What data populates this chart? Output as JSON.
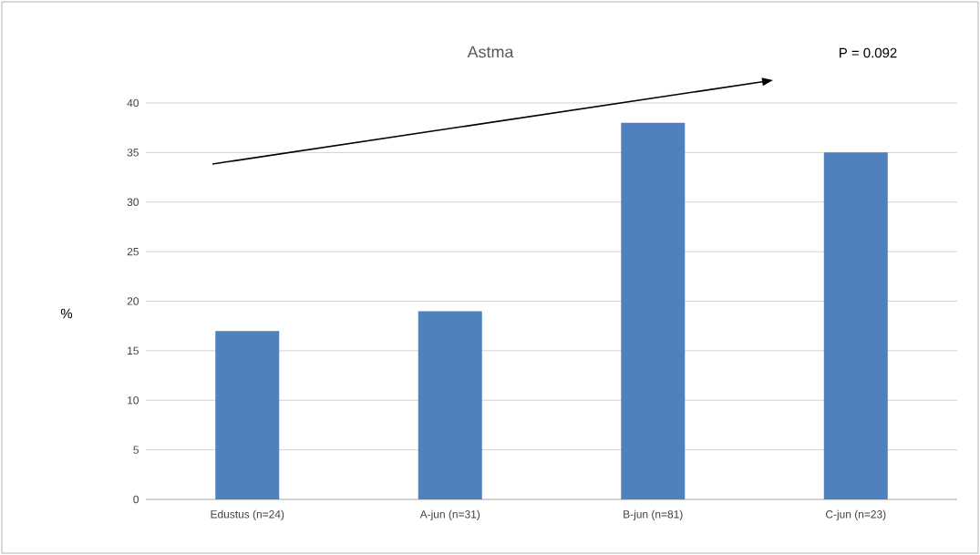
{
  "chart_data": {
    "type": "bar",
    "title": "Astma",
    "ylabel": "%",
    "categories": [
      "Edustus (n=24)",
      "A-jun (n=31)",
      "B-jun (n=81)",
      "C-jun (n=23)"
    ],
    "values": [
      17,
      19,
      38,
      35
    ],
    "color": "#4f81bd",
    "ylim": [
      0,
      40
    ],
    "yticks": [
      0,
      5,
      10,
      15,
      20,
      25,
      30,
      35,
      40
    ],
    "grid": "y",
    "annotations": [
      "P = 0.092"
    ]
  }
}
